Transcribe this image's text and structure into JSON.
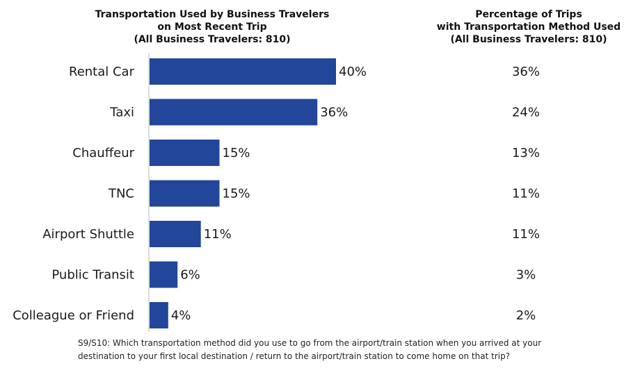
{
  "left_title": {
    "line1": "Transportation Used by Business Travelers",
    "line2": "on Most Recent Trip",
    "line3": "(All Business Travelers: 810)"
  },
  "right_title": {
    "line1": "Percentage of Trips",
    "line2": "with Transportation Method Used",
    "line3": "(All Business Travelers: 810)"
  },
  "chart_data": {
    "type": "bar",
    "orientation": "horizontal",
    "categories": [
      "Rental Car",
      "Taxi",
      "Chauffeur",
      "TNC",
      "Airport Shuttle",
      "Public Transit",
      "Colleague or Friend"
    ],
    "values": [
      40,
      36,
      15,
      15,
      11,
      6,
      4
    ],
    "value_labels": [
      "40%",
      "36%",
      "15%",
      "15%",
      "11%",
      "6%",
      "4%"
    ],
    "trip_percentages": [
      "36%",
      "24%",
      "13%",
      "11%",
      "11%",
      "3%",
      "2%"
    ],
    "bar_color": "#21469A",
    "xlim": [
      0,
      40
    ]
  },
  "footnote": {
    "line1": "S9/S10: Which transportation method did you use to go from the airport/train station when you arrived at your",
    "line2": "destination to your first local destination / return to the airport/train station to come home on that trip?"
  }
}
